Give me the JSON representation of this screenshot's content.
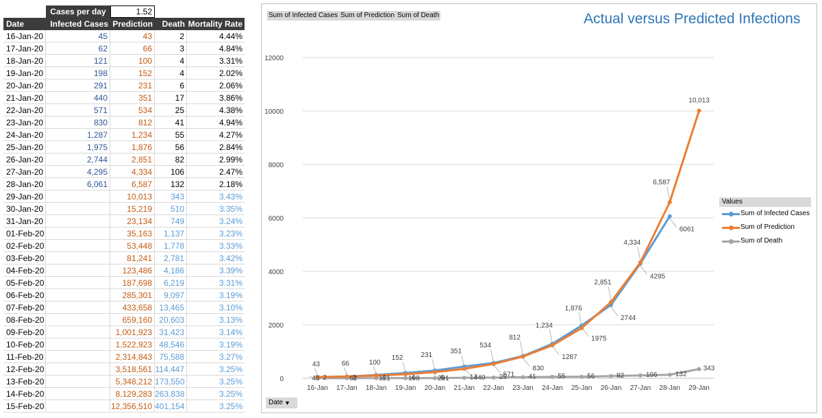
{
  "parameter": {
    "label": "Cases per day",
    "value": "1.52"
  },
  "table": {
    "headers": {
      "date": "Date",
      "infected": "Infected Cases",
      "prediction": "Prediction",
      "death": "Death",
      "mortality": "Mortality Rate"
    },
    "rows": [
      {
        "date": "16-Jan-20",
        "infected": "45",
        "prediction": "43",
        "death": "2",
        "mortality": "4.44%"
      },
      {
        "date": "17-Jan-20",
        "infected": "62",
        "prediction": "66",
        "death": "3",
        "mortality": "4.84%"
      },
      {
        "date": "18-Jan-20",
        "infected": "121",
        "prediction": "100",
        "death": "4",
        "mortality": "3.31%"
      },
      {
        "date": "19-Jan-20",
        "infected": "198",
        "prediction": "152",
        "death": "4",
        "mortality": "2.02%"
      },
      {
        "date": "20-Jan-20",
        "infected": "291",
        "prediction": "231",
        "death": "6",
        "mortality": "2.06%"
      },
      {
        "date": "21-Jan-20",
        "infected": "440",
        "prediction": "351",
        "death": "17",
        "mortality": "3.86%"
      },
      {
        "date": "22-Jan-20",
        "infected": "571",
        "prediction": "534",
        "death": "25",
        "mortality": "4.38%"
      },
      {
        "date": "23-Jan-20",
        "infected": "830",
        "prediction": "812",
        "death": "41",
        "mortality": "4.94%"
      },
      {
        "date": "24-Jan-20",
        "infected": "1,287",
        "prediction": "1,234",
        "death": "55",
        "mortality": "4.27%"
      },
      {
        "date": "25-Jan-20",
        "infected": "1,975",
        "prediction": "1,876",
        "death": "56",
        "mortality": "2.84%"
      },
      {
        "date": "26-Jan-20",
        "infected": "2,744",
        "prediction": "2,851",
        "death": "82",
        "mortality": "2.99%"
      },
      {
        "date": "27-Jan-20",
        "infected": "4,295",
        "prediction": "4,334",
        "death": "106",
        "mortality": "2.47%"
      },
      {
        "date": "28-Jan-20",
        "infected": "6,061",
        "prediction": "6,587",
        "death": "132",
        "mortality": "2.18%"
      },
      {
        "date": "29-Jan-20",
        "infected": "",
        "prediction": "10,013",
        "death": "343",
        "mortality": "3.43%"
      },
      {
        "date": "30-Jan-20",
        "infected": "",
        "prediction": "15,219",
        "death": "510",
        "mortality": "3.35%"
      },
      {
        "date": "31-Jan-20",
        "infected": "",
        "prediction": "23,134",
        "death": "749",
        "mortality": "3.24%"
      },
      {
        "date": "01-Feb-20",
        "infected": "",
        "prediction": "35,163",
        "death": "1,137",
        "mortality": "3.23%"
      },
      {
        "date": "02-Feb-20",
        "infected": "",
        "prediction": "53,448",
        "death": "1,778",
        "mortality": "3.33%"
      },
      {
        "date": "03-Feb-20",
        "infected": "",
        "prediction": "81,241",
        "death": "2,781",
        "mortality": "3.42%"
      },
      {
        "date": "04-Feb-20",
        "infected": "",
        "prediction": "123,486",
        "death": "4,186",
        "mortality": "3.39%"
      },
      {
        "date": "05-Feb-20",
        "infected": "",
        "prediction": "187,698",
        "death": "6,219",
        "mortality": "3.31%"
      },
      {
        "date": "06-Feb-20",
        "infected": "",
        "prediction": "285,301",
        "death": "9,097",
        "mortality": "3.19%"
      },
      {
        "date": "07-Feb-20",
        "infected": "",
        "prediction": "433,658",
        "death": "13,465",
        "mortality": "3.10%"
      },
      {
        "date": "08-Feb-20",
        "infected": "",
        "prediction": "659,160",
        "death": "20,603",
        "mortality": "3.13%"
      },
      {
        "date": "09-Feb-20",
        "infected": "",
        "prediction": "1,001,923",
        "death": "31,423",
        "mortality": "3.14%"
      },
      {
        "date": "10-Feb-20",
        "infected": "",
        "prediction": "1,522,923",
        "death": "48,546",
        "mortality": "3.19%"
      },
      {
        "date": "11-Feb-20",
        "infected": "",
        "prediction": "2,314,843",
        "death": "75,588",
        "mortality": "3.27%"
      },
      {
        "date": "12-Feb-20",
        "infected": "",
        "prediction": "3,518,561",
        "death": "114,447",
        "mortality": "3.25%"
      },
      {
        "date": "13-Feb-20",
        "infected": "",
        "prediction": "5,348,212",
        "death": "173,550",
        "mortality": "3.25%"
      },
      {
        "date": "14-Feb-20",
        "infected": "",
        "prediction": "8,129,283",
        "death": "263,838",
        "mortality": "3.25%"
      },
      {
        "date": "15-Feb-20",
        "infected": "",
        "prediction": "12,356,510",
        "death": "401,154",
        "mortality": "3.25%"
      }
    ]
  },
  "chart_panel": {
    "field_buttons": [
      "Sum of Infected Cases",
      "Sum of Prediction",
      "Sum of Death"
    ],
    "date_button": "Date",
    "legend_title": "Values"
  },
  "colors": {
    "infected": "#5b9bd5",
    "prediction": "#ed7d31",
    "death": "#a5a5a5"
  },
  "chart_data": {
    "type": "line",
    "title": "Actual versus Predicted Infections",
    "xlabel": "",
    "ylabel": "",
    "ylim": [
      0,
      12000
    ],
    "yticks": [
      "0",
      "2000",
      "4000",
      "6000",
      "8000",
      "10000",
      "12000"
    ],
    "grid": true,
    "legend": "right",
    "categories": [
      "16-Jan",
      "17-Jan",
      "18-Jan",
      "19-Jan",
      "20-Jan",
      "21-Jan",
      "22-Jan",
      "23-Jan",
      "24-Jan",
      "25-Jan",
      "26-Jan",
      "27-Jan",
      "28-Jan",
      "29-Jan"
    ],
    "series": [
      {
        "name": "Sum of Infected Cases",
        "key": "infected",
        "values": [
          45,
          62,
          121,
          198,
          291,
          440,
          571,
          830,
          1287,
          1975,
          2744,
          4295,
          6061,
          null
        ],
        "labels": [
          "45",
          "62",
          "121",
          "198",
          "291",
          "440",
          "571",
          "830",
          "1287",
          "1975",
          "2744",
          "4295",
          "6061",
          ""
        ]
      },
      {
        "name": "Sum of Prediction",
        "key": "prediction",
        "values": [
          43,
          66,
          100,
          152,
          231,
          351,
          534,
          812,
          1234,
          1876,
          2851,
          4334,
          6587,
          10013
        ],
        "labels": [
          "43",
          "66",
          "100",
          "152",
          "231",
          "351",
          "534",
          "812",
          "1,234",
          "1,876",
          "2,851",
          "4,334",
          "6,587",
          "10,013"
        ]
      },
      {
        "name": "Sum of Death",
        "key": "death",
        "values": [
          2,
          3,
          4,
          4,
          6,
          17,
          25,
          41,
          55,
          56,
          82,
          106,
          132,
          343
        ],
        "labels": [
          "2",
          "3",
          "4",
          "4",
          "6",
          "17",
          "25",
          "41",
          "55",
          "56",
          "82",
          "106",
          "132",
          "343"
        ]
      }
    ]
  }
}
